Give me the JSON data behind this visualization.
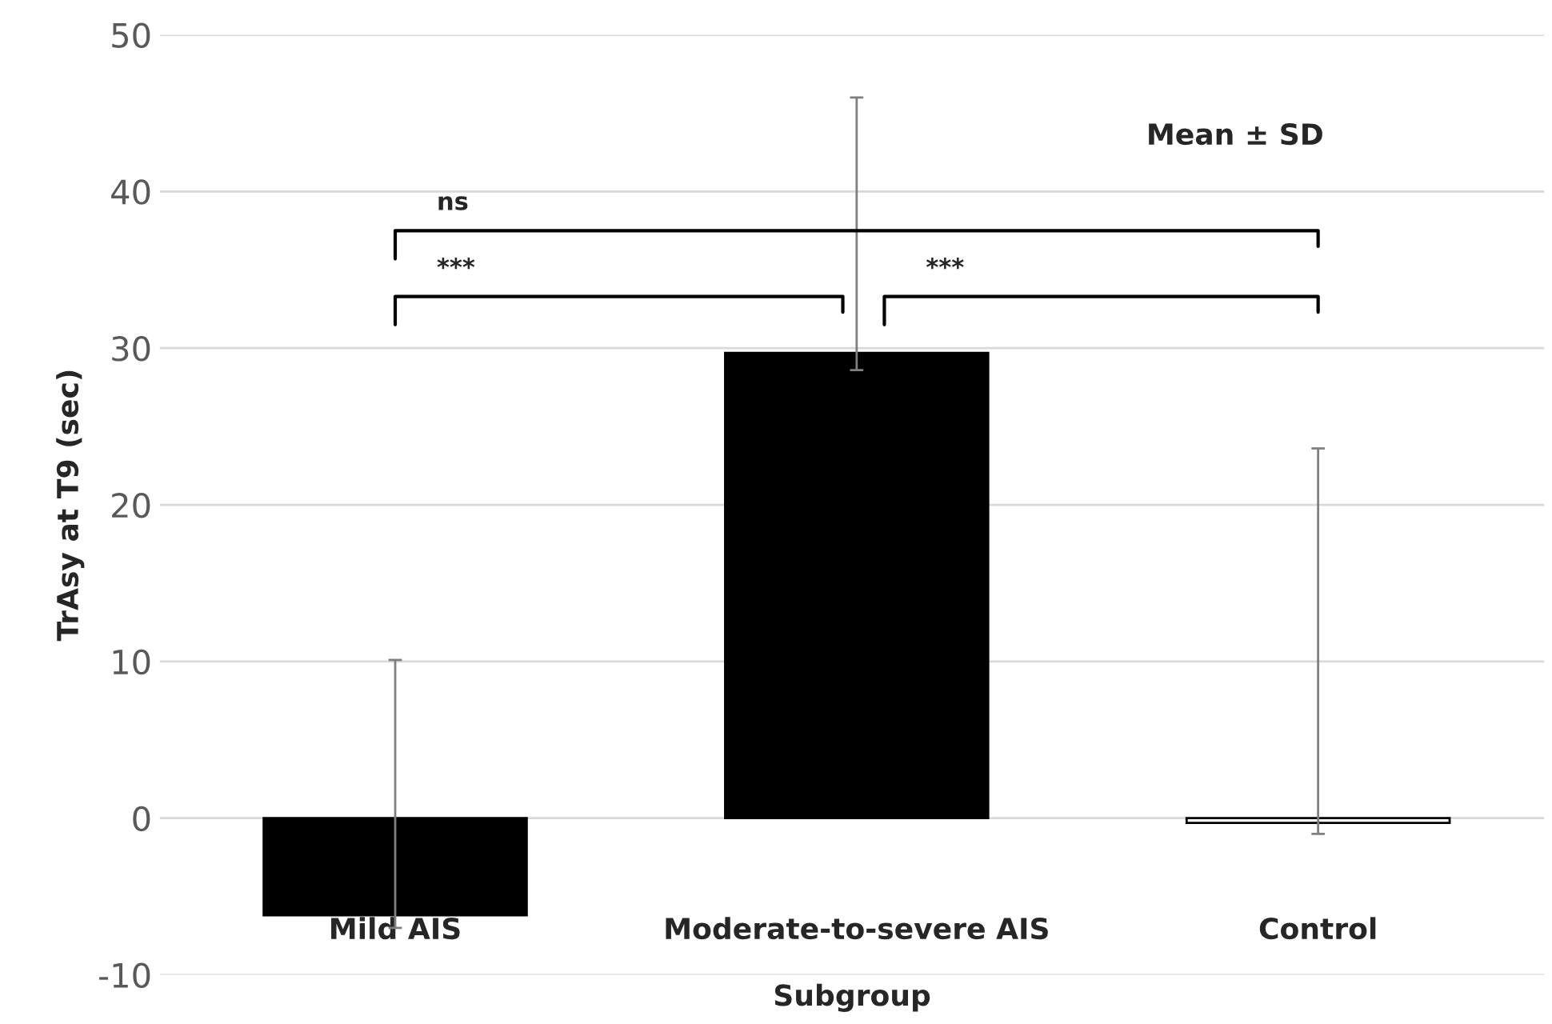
{
  "chart_data": {
    "type": "bar",
    "xlabel": "Subgroup",
    "ylabel": "TrAsy at T9 (sec)",
    "categories": [
      "Mild AIS",
      "Moderate-to-severe AIS",
      "Control"
    ],
    "values": [
      -6.2,
      29.7,
      -0.3
    ],
    "colors": [
      "#000000",
      "#000000",
      "#ffffff"
    ],
    "errors": [
      [
        -7,
        10.1
      ],
      [
        28.6,
        46.0
      ],
      [
        -1.0,
        23.6
      ]
    ],
    "ylim": [
      -10,
      50
    ],
    "yticks": [
      -10,
      0,
      10,
      20,
      30,
      40,
      50
    ],
    "grid": "y",
    "legend": false,
    "annotations": [
      "Mean ± SD",
      "ns",
      "***",
      "***"
    ]
  }
}
